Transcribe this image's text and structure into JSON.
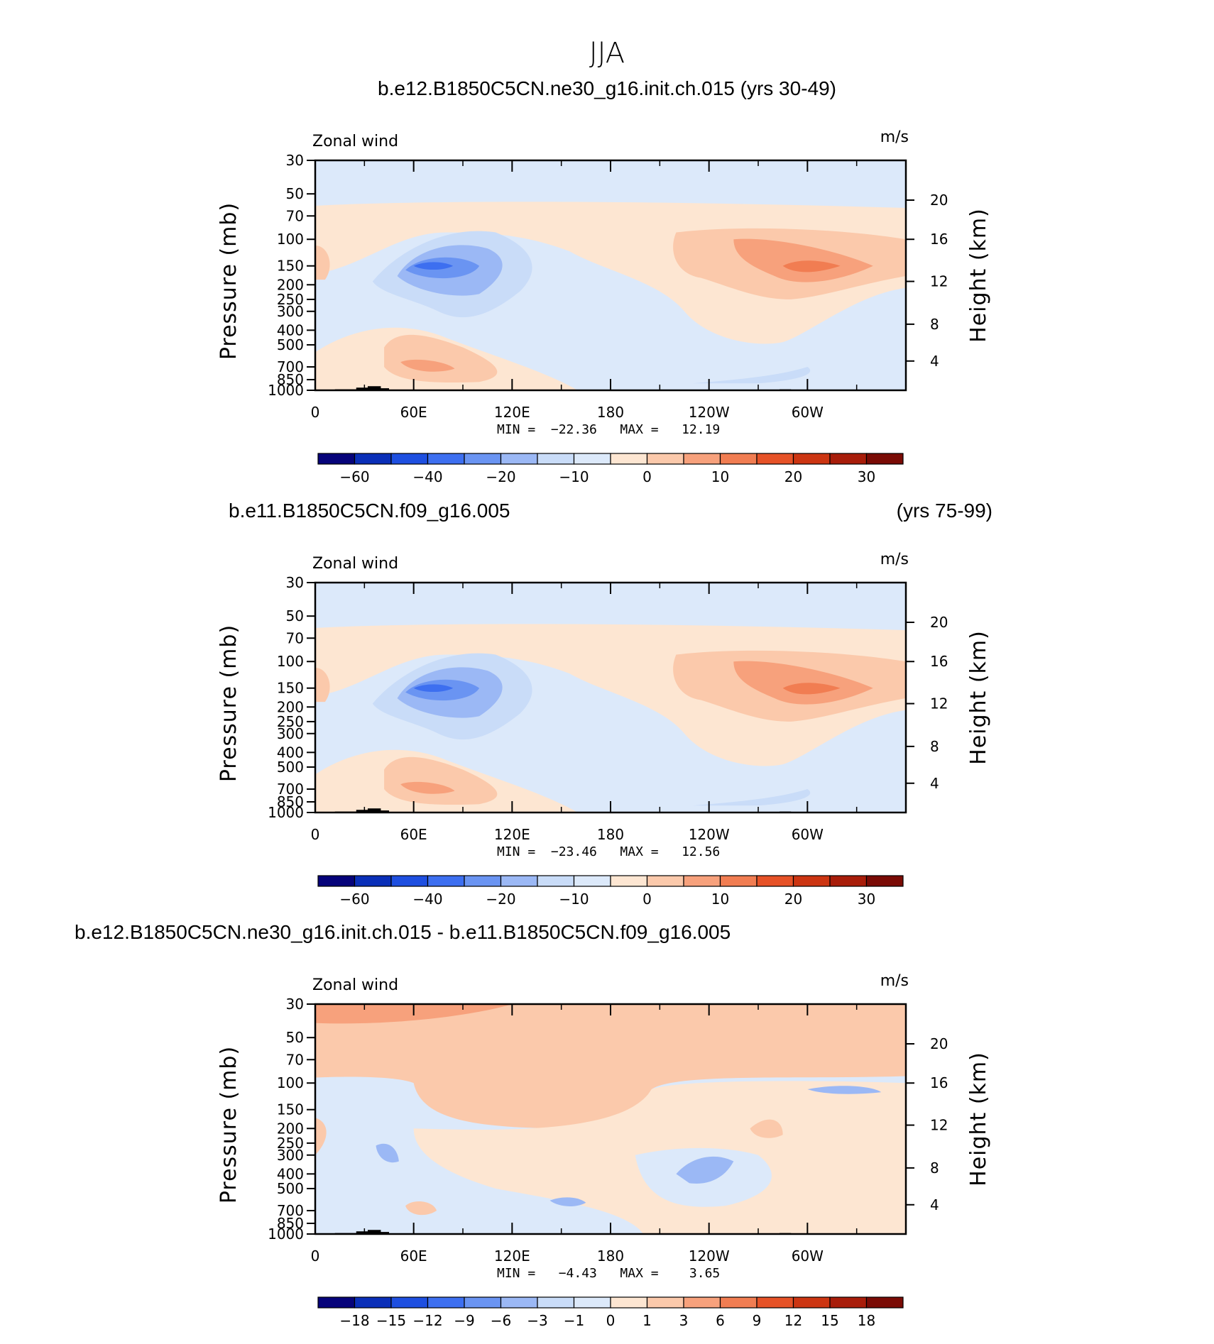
{
  "figure_title": "JJA",
  "chart_data": [
    {
      "type": "heatmap",
      "title": "b.e12.B1850C5CN.ne30_g16.init.ch.015 (yrs 30-49)",
      "title_right": "",
      "variable_label": "Zonal wind",
      "units": "m/s",
      "ylabel": "Pressure (mb)",
      "ylabel_right": "Height (km)",
      "x_ticks": [
        "0",
        "60E",
        "120E",
        "180",
        "120W",
        "60W"
      ],
      "y_ticks": [
        "30",
        "50",
        "70",
        "100",
        "150",
        "200",
        "250",
        "300",
        "400",
        "500",
        "700",
        "850",
        "1000"
      ],
      "height_ticks": [
        "20",
        "16",
        "12",
        "8",
        "4"
      ],
      "min_max_text": "MIN =  −22.36   MAX =   12.19",
      "min": -22.36,
      "max": 12.19,
      "colorbar_labels": [
        "−60",
        "−40",
        "−20",
        "−10",
        "0",
        "10",
        "20",
        "30"
      ],
      "colorbar_colors": [
        "#06037a",
        "#0a2fb8",
        "#1e4fe0",
        "#3d6ff0",
        "#6a94f2",
        "#9bb8f5",
        "#c9dcf8",
        "#dce9fa",
        "#fde6d2",
        "#fbc9ab",
        "#f7a17c",
        "#f17d52",
        "#e65227",
        "#cc3512",
        "#a81d0a",
        "#7a0b05"
      ]
    },
    {
      "type": "heatmap",
      "title": "b.e11.B1850C5CN.f09_g16.005",
      "title_right": "(yrs 75-99)",
      "variable_label": "Zonal wind",
      "units": "m/s",
      "ylabel": "Pressure (mb)",
      "ylabel_right": "Height (km)",
      "x_ticks": [
        "0",
        "60E",
        "120E",
        "180",
        "120W",
        "60W"
      ],
      "y_ticks": [
        "30",
        "50",
        "70",
        "100",
        "150",
        "200",
        "250",
        "300",
        "400",
        "500",
        "700",
        "850",
        "1000"
      ],
      "height_ticks": [
        "20",
        "16",
        "12",
        "8",
        "4"
      ],
      "min_max_text": "MIN =  −23.46   MAX =   12.56",
      "min": -23.46,
      "max": 12.56,
      "colorbar_labels": [
        "−60",
        "−40",
        "−20",
        "−10",
        "0",
        "10",
        "20",
        "30"
      ],
      "colorbar_colors": [
        "#06037a",
        "#0a2fb8",
        "#1e4fe0",
        "#3d6ff0",
        "#6a94f2",
        "#9bb8f5",
        "#c9dcf8",
        "#dce9fa",
        "#fde6d2",
        "#fbc9ab",
        "#f7a17c",
        "#f17d52",
        "#e65227",
        "#cc3512",
        "#a81d0a",
        "#7a0b05"
      ]
    },
    {
      "type": "heatmap",
      "title": "b.e12.B1850C5CN.ne30_g16.init.ch.015 - b.e11.B1850C5CN.f09_g16.005",
      "title_right": "",
      "variable_label": "Zonal wind",
      "units": "m/s",
      "ylabel": "Pressure (mb)",
      "ylabel_right": "Height (km)",
      "x_ticks": [
        "0",
        "60E",
        "120E",
        "180",
        "120W",
        "60W"
      ],
      "y_ticks": [
        "30",
        "50",
        "70",
        "100",
        "150",
        "200",
        "250",
        "300",
        "400",
        "500",
        "700",
        "850",
        "1000"
      ],
      "height_ticks": [
        "20",
        "16",
        "12",
        "8",
        "4"
      ],
      "min_max_text": "MIN =   −4.43   MAX =    3.65",
      "min": -4.43,
      "max": 3.65,
      "colorbar_labels": [
        "−18",
        "−15",
        "−12",
        "−9",
        "−6",
        "−3",
        "−1",
        "0",
        "1",
        "3",
        "6",
        "9",
        "12",
        "15",
        "18"
      ],
      "colorbar_colors": [
        "#06037a",
        "#0a2fb8",
        "#1e4fe0",
        "#3d6ff0",
        "#6a94f2",
        "#9bb8f5",
        "#c9dcf8",
        "#dce9fa",
        "#fde6d2",
        "#fbc9ab",
        "#f7a17c",
        "#f17d52",
        "#e65227",
        "#cc3512",
        "#a81d0a",
        "#7a0b05"
      ]
    }
  ]
}
